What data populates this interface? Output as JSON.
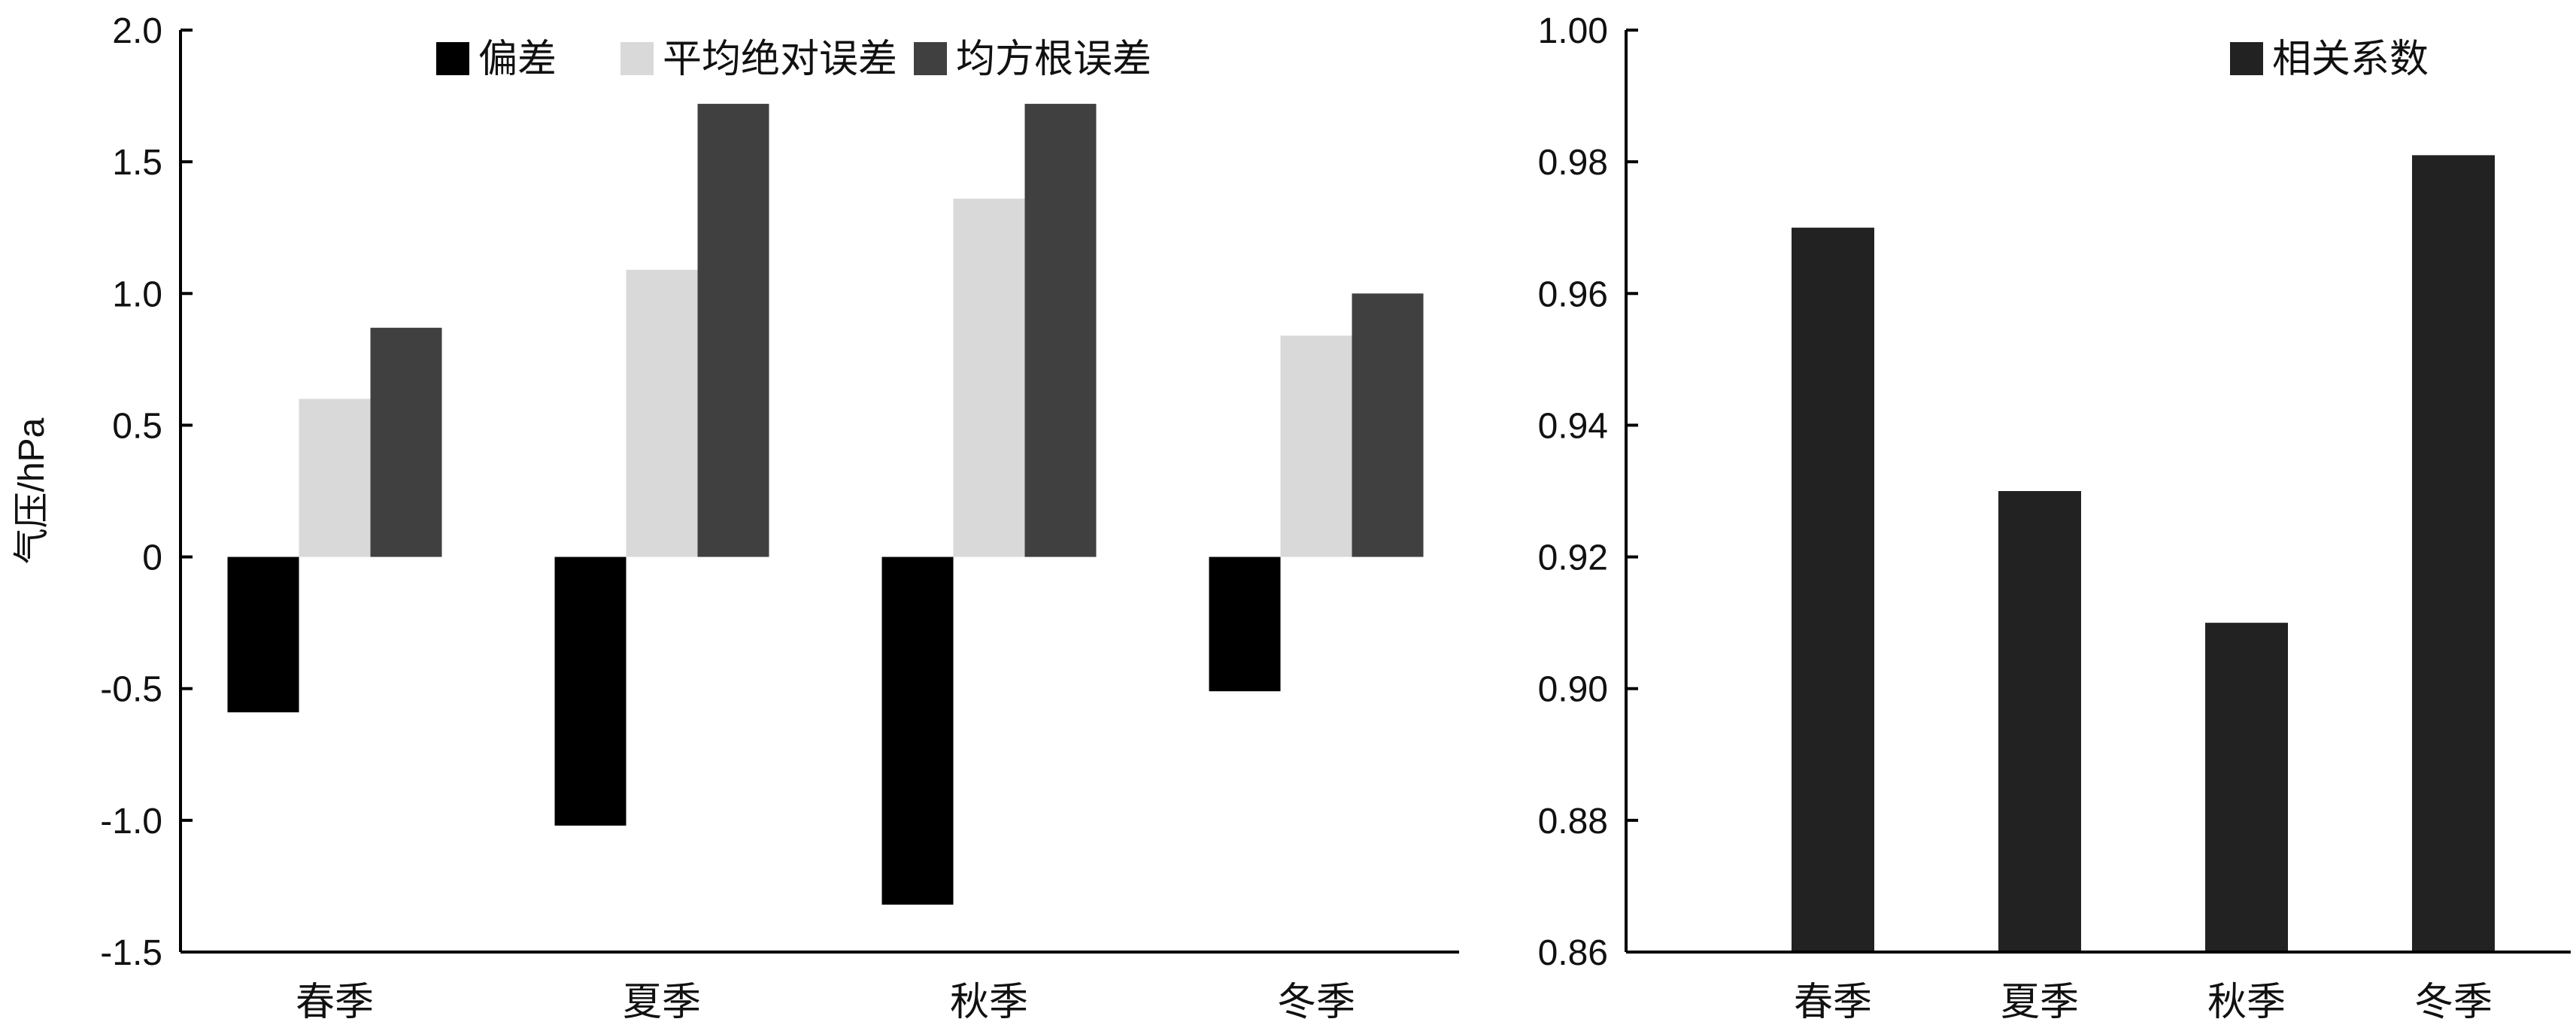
{
  "chart_data": [
    {
      "type": "bar",
      "categories": [
        "春季",
        "夏季",
        "秋季",
        "冬季"
      ],
      "series": [
        {
          "name": "偏差",
          "color": "#000000",
          "values": [
            -0.59,
            -1.02,
            -1.32,
            -0.51
          ]
        },
        {
          "name": "平均绝对误差",
          "color": "#d9d9d9",
          "values": [
            0.6,
            1.09,
            1.36,
            0.84
          ]
        },
        {
          "name": "均方根误差",
          "color": "#404040",
          "values": [
            0.87,
            1.72,
            1.72,
            1.0
          ]
        }
      ],
      "ylabel": "气压/hPa",
      "ylim": [
        -1.5,
        2.0
      ],
      "yticks": [
        2.0,
        1.5,
        1.0,
        0.5,
        0,
        -0.5,
        -1.0,
        -1.5
      ],
      "ytick_labels": [
        "2.0",
        "1.5",
        "1.0",
        "0.5",
        "0",
        "-0.5",
        "-1.0",
        "-1.5"
      ],
      "legend_position": "top-center",
      "grid": false
    },
    {
      "type": "bar",
      "categories": [
        "春季",
        "夏季",
        "秋季",
        "冬季"
      ],
      "series": [
        {
          "name": "相关系数",
          "color": "#222222",
          "values": [
            0.97,
            0.93,
            0.91,
            0.981
          ]
        }
      ],
      "ylim": [
        0.86,
        1.0
      ],
      "yticks": [
        1.0,
        0.98,
        0.96,
        0.94,
        0.92,
        0.9,
        0.88,
        0.86
      ],
      "ytick_labels": [
        "1.00",
        "0.98",
        "0.96",
        "0.94",
        "0.92",
        "0.90",
        "0.88",
        "0.86"
      ],
      "legend_position": "top-right",
      "grid": false
    }
  ]
}
